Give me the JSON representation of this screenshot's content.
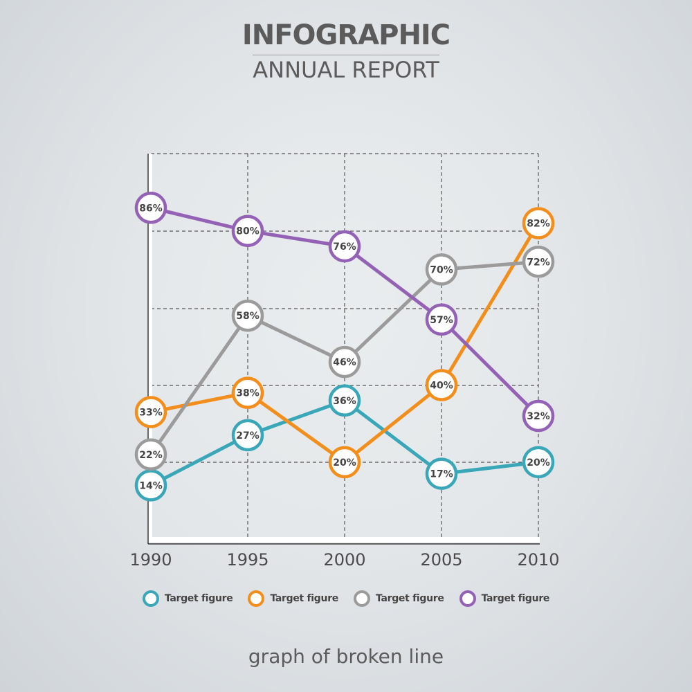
{
  "header": {
    "title": "INFOGRAPHIC",
    "subtitle": "ANNUAL REPORT"
  },
  "footer": {
    "caption": "graph of broken line"
  },
  "chart_data": {
    "type": "line",
    "title": "",
    "xlabel": "",
    "ylabel": "",
    "x": [
      "1990",
      "1995",
      "2000",
      "2005",
      "2010"
    ],
    "ylim": [
      0,
      100
    ],
    "grid": true,
    "legend_position": "bottom",
    "series": [
      {
        "name": "Target figure",
        "color": "#3aa7b9",
        "values": [
          14,
          27,
          36,
          17,
          20
        ],
        "labels": [
          "14%",
          "27%",
          "36%",
          "17%",
          "20%"
        ]
      },
      {
        "name": "Target figure",
        "color": "#f28e1c",
        "values": [
          33,
          38,
          20,
          40,
          82
        ],
        "labels": [
          "33%",
          "38%",
          "20%",
          "40%",
          "82%"
        ]
      },
      {
        "name": "Target figure",
        "color": "#9b9b9b",
        "values": [
          22,
          58,
          46,
          70,
          72
        ],
        "labels": [
          "22%",
          "58%",
          "46%",
          "70%",
          "72%"
        ]
      },
      {
        "name": "Target figure",
        "color": "#9462b5",
        "values": [
          86,
          80,
          76,
          57,
          32
        ],
        "labels": [
          "86%",
          "80%",
          "76%",
          "57%",
          "32%"
        ]
      }
    ]
  }
}
